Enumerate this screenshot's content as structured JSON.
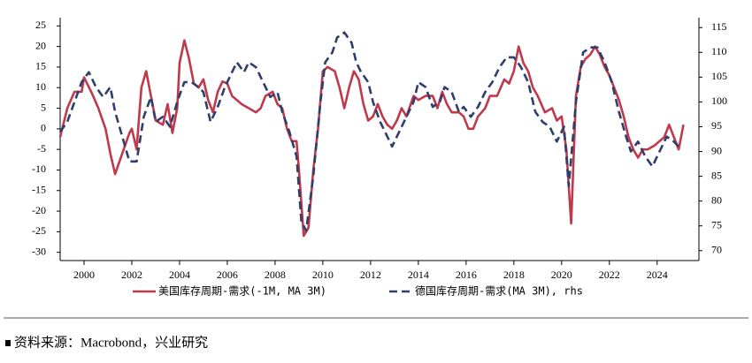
{
  "chart_data": {
    "type": "line",
    "legend": "bottom",
    "xlim": [
      1999,
      2025.75
    ],
    "xticks": [
      2000,
      2002,
      2004,
      2006,
      2008,
      2010,
      2012,
      2014,
      2016,
      2018,
      2020,
      2022,
      2024
    ],
    "ylim": [
      -32,
      27
    ],
    "yticks": [
      -30,
      -25,
      -20,
      -15,
      -10,
      -5,
      0,
      5,
      10,
      15,
      20,
      25
    ],
    "y2lim": [
      68,
      117
    ],
    "y2ticks": [
      70,
      75,
      80,
      85,
      90,
      95,
      100,
      105,
      110,
      115
    ],
    "series": [
      {
        "name": "美国库存周期-需求(-1M, MA 3M)",
        "color": "#c0394b",
        "dash": false,
        "x": [
          1999.0,
          1999.3,
          1999.6,
          1999.9,
          2000.0,
          2000.3,
          2000.6,
          2000.9,
          2001.1,
          2001.3,
          2001.6,
          2001.9,
          2002.0,
          2002.2,
          2002.4,
          2002.6,
          2002.8,
          2003.0,
          2003.3,
          2003.5,
          2003.7,
          2003.9,
          2004.0,
          2004.2,
          2004.4,
          2004.6,
          2004.8,
          2005.0,
          2005.2,
          2005.4,
          2005.6,
          2005.8,
          2006.0,
          2006.2,
          2006.4,
          2006.6,
          2006.9,
          2007.2,
          2007.4,
          2007.6,
          2007.9,
          2008.1,
          2008.3,
          2008.5,
          2008.7,
          2008.9,
          2009.0,
          2009.2,
          2009.4,
          2009.6,
          2009.8,
          2010.0,
          2010.2,
          2010.5,
          2010.7,
          2010.9,
          2011.1,
          2011.3,
          2011.5,
          2011.7,
          2011.9,
          2012.1,
          2012.3,
          2012.5,
          2012.7,
          2012.9,
          2013.1,
          2013.3,
          2013.5,
          2013.8,
          2014.0,
          2014.3,
          2014.6,
          2014.8,
          2015.0,
          2015.2,
          2015.4,
          2015.7,
          2015.9,
          2016.1,
          2016.3,
          2016.5,
          2016.8,
          2017.0,
          2017.3,
          2017.6,
          2017.8,
          2018.0,
          2018.2,
          2018.4,
          2018.6,
          2018.8,
          2019.0,
          2019.3,
          2019.6,
          2019.8,
          2020.0,
          2020.2,
          2020.4,
          2020.6,
          2020.8,
          2021.0,
          2021.2,
          2021.4,
          2021.6,
          2021.8,
          2022.0,
          2022.2,
          2022.4,
          2022.6,
          2022.8,
          2023.0,
          2023.2,
          2023.4,
          2023.6,
          2023.9,
          2024.1,
          2024.3,
          2024.5,
          2024.7,
          2024.9,
          2025.1
        ],
        "values": [
          -2,
          5,
          9,
          9,
          12.5,
          9,
          5,
          0,
          -6,
          -11,
          -6,
          -1,
          0,
          -5,
          10,
          14,
          8,
          2,
          1,
          6,
          -1,
          5,
          16,
          21.5,
          17,
          11,
          10,
          12,
          7,
          4,
          9,
          11.5,
          11,
          8,
          7,
          6,
          5,
          4,
          5,
          8,
          9,
          6,
          5,
          0,
          -3,
          -3,
          -10,
          -26,
          -24,
          -10,
          0,
          14,
          15,
          14,
          10,
          5,
          10,
          14,
          12,
          6,
          2,
          3,
          6,
          3,
          1,
          0,
          2,
          5,
          3,
          8,
          7,
          8,
          8,
          5,
          9,
          6,
          4,
          4,
          3,
          0,
          0,
          3,
          5,
          8,
          8,
          12,
          11,
          14,
          20,
          16,
          14,
          10,
          8,
          4,
          5,
          2,
          3,
          -5,
          -23,
          8,
          15,
          17,
          18,
          20,
          18,
          15,
          13,
          10,
          7,
          3,
          -2,
          -5,
          -7,
          -5,
          -5,
          -4,
          -3,
          -2,
          1,
          -2,
          -5,
          1
        ]
      },
      {
        "name": "德国库存周期-需求(MA 3M), rhs",
        "color": "#2e3f6b",
        "dash": true,
        "axis": "y2",
        "x": [
          1999.0,
          1999.3,
          1999.6,
          1999.9,
          2000.2,
          2000.5,
          2000.8,
          2001.1,
          2001.3,
          2001.6,
          2001.9,
          2002.2,
          2002.5,
          2002.8,
          2003.0,
          2003.3,
          2003.6,
          2003.9,
          2004.2,
          2004.5,
          2004.8,
          2005.0,
          2005.3,
          2005.6,
          2005.9,
          2006.2,
          2006.4,
          2006.7,
          2006.9,
          2007.2,
          2007.5,
          2007.8,
          2008.1,
          2008.3,
          2008.6,
          2008.9,
          2009.1,
          2009.3,
          2009.6,
          2009.9,
          2010.1,
          2010.4,
          2010.6,
          2010.9,
          2011.2,
          2011.4,
          2011.6,
          2011.9,
          2012.1,
          2012.4,
          2012.7,
          2012.9,
          2013.2,
          2013.5,
          2013.8,
          2014.0,
          2014.3,
          2014.6,
          2014.9,
          2015.1,
          2015.4,
          2015.7,
          2015.9,
          2016.2,
          2016.5,
          2016.8,
          2017.1,
          2017.4,
          2017.7,
          2018.0,
          2018.3,
          2018.6,
          2018.9,
          2019.2,
          2019.5,
          2019.8,
          2020.1,
          2020.3,
          2020.6,
          2020.9,
          2021.2,
          2021.5,
          2021.8,
          2022.1,
          2022.4,
          2022.7,
          2022.9,
          2023.2,
          2023.5,
          2023.8,
          2024.1,
          2024.4,
          2024.7,
          2024.9
        ],
        "values": [
          94,
          96,
          100,
          104,
          106,
          103,
          101,
          103,
          98,
          93,
          88,
          88,
          97,
          101,
          96,
          97,
          95,
          100,
          104,
          104,
          103,
          102,
          96,
          99,
          103,
          106,
          108,
          106,
          108,
          107,
          104,
          101,
          102,
          98,
          94,
          89,
          76,
          74,
          85,
          100,
          108,
          110,
          113,
          114,
          112,
          108,
          106,
          104,
          100,
          96,
          93,
          91,
          94,
          97,
          100,
          104,
          103,
          99,
          100,
          103,
          102,
          98,
          99,
          97,
          99,
          102,
          104,
          107,
          109,
          109,
          107,
          104,
          98,
          96,
          95,
          92,
          95,
          83,
          100,
          110,
          111,
          111,
          108,
          104,
          98,
          93,
          90,
          92,
          89,
          87,
          90,
          93,
          92,
          91
        ]
      }
    ]
  },
  "source": "资料来源：Macrobond，兴业研究"
}
